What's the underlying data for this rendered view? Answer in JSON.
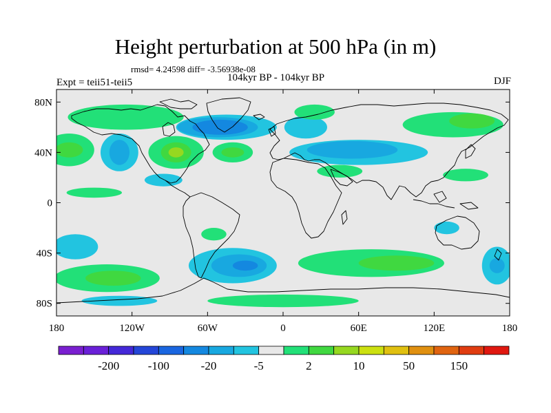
{
  "title": "Height perturbation at 500 hPa (in m)",
  "stats": "rmsd= 4.24598 diff= -3.56938e-08",
  "left_label": "Expt = teii51-teii5",
  "center_label": "104kyr BP - 104kyr BP",
  "right_label": "DJF",
  "map": {
    "projection": "cylindrical-equidistant",
    "lon_range": [
      -180,
      180
    ],
    "lat_range": [
      -90,
      90
    ],
    "x_ticks": [
      {
        "lon": -180,
        "label": "180"
      },
      {
        "lon": -120,
        "label": "120W"
      },
      {
        "lon": -60,
        "label": "60W"
      },
      {
        "lon": 0,
        "label": "0"
      },
      {
        "lon": 60,
        "label": "60E"
      },
      {
        "lon": 120,
        "label": "120E"
      },
      {
        "lon": 180,
        "label": "180"
      }
    ],
    "y_ticks": [
      {
        "lat": 80,
        "label": "80N"
      },
      {
        "lat": 40,
        "label": "40N"
      },
      {
        "lat": 0,
        "label": "0"
      },
      {
        "lat": -40,
        "label": "40S"
      },
      {
        "lat": -80,
        "label": "80S"
      }
    ],
    "background_color": "#e8e8e8",
    "coastline_color": "#000000"
  },
  "colorbar": {
    "colors": [
      "#7a1fd0",
      "#6a20d8",
      "#4428d8",
      "#2446d8",
      "#1a66e0",
      "#1488e0",
      "#18a8e0",
      "#22c4e0",
      "#e8e8e8",
      "#22e078",
      "#40d840",
      "#96d820",
      "#cce010",
      "#e0c010",
      "#e09010",
      "#e06410",
      "#e03c10",
      "#e01810"
    ],
    "labels": [
      "-200",
      "-100",
      "-20",
      "-5",
      "2",
      "10",
      "50",
      "150"
    ]
  },
  "anomaly_levels": [
    {
      "value": -5,
      "color": "#22c4e0"
    },
    {
      "value": -20,
      "color": "#18a8e0"
    },
    {
      "value": -50,
      "color": "#1488e0"
    },
    {
      "value": 5,
      "color": "#22e078"
    },
    {
      "value": 10,
      "color": "#40d840"
    },
    {
      "value": 20,
      "color": "#96d820"
    }
  ],
  "anomaly_field": [
    {
      "lon": 18,
      "lat": 60,
      "rlon": 17,
      "rlat": 9,
      "value": -5
    },
    {
      "lon": -45,
      "lat": 60,
      "rlon": 40,
      "rlat": 10,
      "value": -5
    },
    {
      "lon": -52,
      "lat": 60,
      "rlon": 32,
      "rlat": 8,
      "value": -20
    },
    {
      "lon": -50,
      "lat": 60,
      "rlon": 22,
      "rlat": 6,
      "value": -50
    },
    {
      "lon": 25,
      "lat": 72,
      "rlon": 16,
      "rlat": 6,
      "value": 5
    },
    {
      "lon": -125,
      "lat": 68,
      "rlon": 46,
      "rlat": 10,
      "value": 5
    },
    {
      "lon": -85,
      "lat": 40,
      "rlon": 22,
      "rlat": 13,
      "value": 5
    },
    {
      "lon": -85,
      "lat": 40,
      "rlon": 12,
      "rlat": 8,
      "value": 10
    },
    {
      "lon": -85,
      "lat": 40,
      "rlon": 6,
      "rlat": 4,
      "value": 20
    },
    {
      "lon": -40,
      "lat": 40,
      "rlon": 16,
      "rlat": 8,
      "value": 5
    },
    {
      "lon": -40,
      "lat": 40,
      "rlon": 9,
      "rlat": 4,
      "value": 10
    },
    {
      "lon": -170,
      "lat": 42,
      "rlon": 20,
      "rlat": 13,
      "value": 5
    },
    {
      "lon": -170,
      "lat": 42,
      "rlon": 11,
      "rlat": 6,
      "value": 10
    },
    {
      "lon": -130,
      "lat": 40,
      "rlon": 15,
      "rlat": 15,
      "value": -5
    },
    {
      "lon": -130,
      "lat": 40,
      "rlon": 8,
      "rlat": 10,
      "value": -20
    },
    {
      "lon": 60,
      "lat": 40,
      "rlon": 55,
      "rlat": 10,
      "value": -5
    },
    {
      "lon": 55,
      "lat": 42,
      "rlon": 36,
      "rlat": 7,
      "value": -20
    },
    {
      "lon": 135,
      "lat": 62,
      "rlon": 40,
      "rlat": 10,
      "value": 5
    },
    {
      "lon": 150,
      "lat": 65,
      "rlon": 18,
      "rlat": 6,
      "value": 10
    },
    {
      "lon": 45,
      "lat": 25,
      "rlon": 18,
      "rlat": 5,
      "value": 5
    },
    {
      "lon": -95,
      "lat": 18,
      "rlon": 15,
      "rlat": 5,
      "value": -5
    },
    {
      "lon": 145,
      "lat": 22,
      "rlon": 18,
      "rlat": 5,
      "value": 5
    },
    {
      "lon": -150,
      "lat": 8,
      "rlon": 22,
      "rlat": 4,
      "value": 5
    },
    {
      "lon": 70,
      "lat": -48,
      "rlon": 58,
      "rlat": 11,
      "value": 5
    },
    {
      "lon": 90,
      "lat": -48,
      "rlon": 30,
      "rlat": 6,
      "value": 10
    },
    {
      "lon": -40,
      "lat": -50,
      "rlon": 35,
      "rlat": 14,
      "value": -5
    },
    {
      "lon": -35,
      "lat": -50,
      "rlon": 22,
      "rlat": 9,
      "value": -20
    },
    {
      "lon": -30,
      "lat": -50,
      "rlon": 10,
      "rlat": 4,
      "value": -50
    },
    {
      "lon": -140,
      "lat": -60,
      "rlon": 42,
      "rlat": 11,
      "value": 5
    },
    {
      "lon": -135,
      "lat": -60,
      "rlon": 22,
      "rlat": 6,
      "value": 10
    },
    {
      "lon": -165,
      "lat": -35,
      "rlon": 18,
      "rlat": 10,
      "value": -5
    },
    {
      "lon": 170,
      "lat": -50,
      "rlon": 12,
      "rlat": 15,
      "value": -5
    },
    {
      "lon": 170,
      "lat": -50,
      "rlon": 6,
      "rlat": 6,
      "value": -20
    },
    {
      "lon": -55,
      "lat": -25,
      "rlon": 10,
      "rlat": 5,
      "value": 5
    },
    {
      "lon": 130,
      "lat": -20,
      "rlon": 10,
      "rlat": 5,
      "value": -5
    },
    {
      "lon": 0,
      "lat": -78,
      "rlon": 60,
      "rlat": 5,
      "value": 5
    },
    {
      "lon": -130,
      "lat": -78,
      "rlon": 30,
      "rlat": 4,
      "value": -5
    }
  ]
}
